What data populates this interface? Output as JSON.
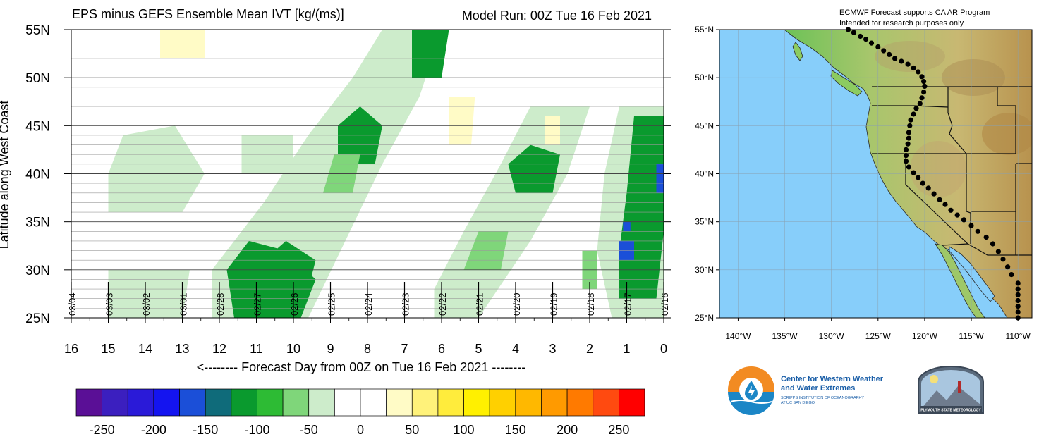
{
  "left_title": "EPS minus GEFS Ensemble Mean IVT [kg/(ms)]",
  "model_run": "Model Run: 00Z Tue 16 Feb 2021",
  "right_title_line1": "ECMWF Forecast supports CA AR Program",
  "right_title_line2": "Intended for research purposes only",
  "logos": {
    "cw3e_line1": "Center for Western Weather",
    "cw3e_line2": "and Water Extremes",
    "cw3e_line3": "SCRIPPS INSTITUTION OF OCEANOGRAPHY",
    "cw3e_line4": "AT UC SAN DIEGO",
    "psu_text": "PLYMOUTH STATE METEOROLOGY"
  },
  "chart_data": [
    {
      "type": "heatmap",
      "title": "EPS minus GEFS Ensemble Mean IVT [kg/(ms)]",
      "subtitle": "Model Run: 00Z Tue 16 Feb 2021",
      "xlabel": "<-------- Forecast Day from 00Z on Tue 16 Feb 2021 --------",
      "ylabel": "Latitude along West Coast",
      "x_ticks": [
        16,
        15,
        14,
        13,
        12,
        11,
        10,
        9,
        8,
        7,
        6,
        5,
        4,
        3,
        2,
        1,
        0
      ],
      "xlim": [
        16,
        0
      ],
      "y_ticks": [
        25,
        30,
        35,
        40,
        45,
        50,
        55
      ],
      "y_tick_labels": [
        "25N",
        "30N",
        "35N",
        "40N",
        "45N",
        "50N",
        "55N"
      ],
      "ylim": [
        25,
        55
      ],
      "date_labels": [
        "03/04",
        "03/03",
        "03/02",
        "03/01",
        "02/28",
        "02/27",
        "02/26",
        "02/25",
        "02/24",
        "02/23",
        "02/22",
        "02/21",
        "02/20",
        "02/19",
        "02/18",
        "02/17",
        "02/16"
      ],
      "grid": true,
      "colorbar": {
        "ticks": [
          -250,
          -200,
          -150,
          -100,
          -50,
          0,
          50,
          100,
          150,
          200,
          250
        ],
        "colors": [
          "#5a0f96",
          "#3b1fbf",
          "#2a1ad8",
          "#1414f0",
          "#1b4fd8",
          "#0f6b7a",
          "#0a9a2e",
          "#2dbb34",
          "#7fd67a",
          "#cdeccb",
          "#ffffff",
          "#ffffff",
          "#fffbc6",
          "#fff27a",
          "#ffec3c",
          "#fff000",
          "#ffd000",
          "#ffb800",
          "#ff9a00",
          "#ff7a00",
          "#ff4a10",
          "#ff0000"
        ]
      },
      "features": [
        {
          "label": "light green band (~-50) from day 12 / 28N rising to day 6 / 55N",
          "level": -50
        },
        {
          "label": "green core (~-100) near day 8 / 44-47N",
          "level": -100
        },
        {
          "label": "green core (~-100) near day 11 / 28-30N",
          "level": -100
        },
        {
          "label": "blue spots (~-150) near day 0-1 / 31-41N",
          "level": -150
        },
        {
          "label": "light yellow (~50) near day 5.5 / 43-48N",
          "level": 50
        },
        {
          "label": "light yellow (~50) near day 3 / 43-46N",
          "level": 50
        },
        {
          "label": "light yellow (~50) near day 13 / 52-55N",
          "level": 50
        }
      ]
    },
    {
      "type": "map",
      "x_tick_labels": [
        "140°W",
        "135°W",
        "130°W",
        "125°W",
        "120°W",
        "115°W",
        "110°W"
      ],
      "x_ticks": [
        -140,
        -135,
        -130,
        -125,
        -120,
        -115,
        -110
      ],
      "xlim": [
        -142,
        -108.5
      ],
      "y_tick_labels": [
        "25°N",
        "30°N",
        "35°N",
        "40°N",
        "45°N",
        "50°N",
        "55°N"
      ],
      "y_ticks": [
        25,
        30,
        35,
        40,
        45,
        50,
        55
      ],
      "ylim": [
        25,
        55
      ],
      "transect_points": [
        [
          -110,
          25
        ],
        [
          -110,
          25.6
        ],
        [
          -110,
          26.2
        ],
        [
          -110,
          26.8
        ],
        [
          -110,
          27.4
        ],
        [
          -110,
          28.0
        ],
        [
          -110,
          28.6
        ],
        [
          -110.7,
          29.5
        ],
        [
          -111.1,
          30.3
        ],
        [
          -111.6,
          31.1
        ],
        [
          -112.1,
          31.9
        ],
        [
          -112.7,
          32.7
        ],
        [
          -113.4,
          33.4
        ],
        [
          -114.3,
          34.0
        ],
        [
          -115.0,
          34.6
        ],
        [
          -115.8,
          35.2
        ],
        [
          -116.5,
          35.7
        ],
        [
          -117.2,
          36.2
        ],
        [
          -117.8,
          36.8
        ],
        [
          -118.4,
          37.3
        ],
        [
          -119.0,
          37.9
        ],
        [
          -119.6,
          38.5
        ],
        [
          -120.2,
          39.0
        ],
        [
          -120.7,
          39.6
        ],
        [
          -121.2,
          40.1
        ],
        [
          -121.7,
          40.7
        ],
        [
          -122.0,
          41.3
        ],
        [
          -122.0,
          41.9
        ],
        [
          -122.0,
          42.5
        ],
        [
          -121.8,
          43.1
        ],
        [
          -121.7,
          43.7
        ],
        [
          -121.7,
          44.3
        ],
        [
          -121.6,
          45.0
        ],
        [
          -121.5,
          45.6
        ],
        [
          -121.2,
          46.2
        ],
        [
          -120.9,
          46.8
        ],
        [
          -120.5,
          47.3
        ],
        [
          -120.3,
          47.9
        ],
        [
          -120.1,
          48.5
        ],
        [
          -120.0,
          49.1
        ],
        [
          -120.1,
          49.6
        ],
        [
          -120.3,
          50.1
        ],
        [
          -120.7,
          50.6
        ],
        [
          -121.2,
          51.0
        ],
        [
          -121.8,
          51.4
        ],
        [
          -122.5,
          51.7
        ],
        [
          -123.2,
          52.0
        ],
        [
          -123.8,
          52.4
        ],
        [
          -124.4,
          52.8
        ],
        [
          -125.0,
          53.2
        ],
        [
          -125.7,
          53.6
        ],
        [
          -126.3,
          54.0
        ],
        [
          -126.9,
          54.3
        ],
        [
          -127.6,
          54.7
        ],
        [
          -128.2,
          55.0
        ]
      ]
    }
  ]
}
